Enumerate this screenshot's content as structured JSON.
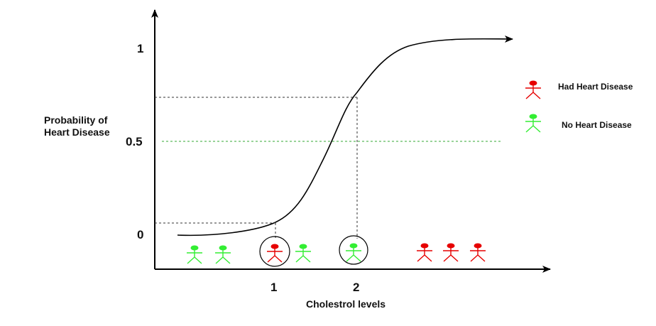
{
  "axes": {
    "y_label_line1": "Probability of",
    "y_label_line2": "Heart Disease",
    "x_label": "Cholestrol levels",
    "y_ticks": [
      "1",
      "0.5",
      "0"
    ],
    "x_ticks": [
      "1",
      "2"
    ]
  },
  "legend": {
    "had": "Had Heart Disease",
    "no": "No Heart Disease"
  },
  "colors": {
    "had": "#e60000",
    "no": "#33ee33",
    "axis": "#000000",
    "threshold": "#33aa33",
    "guide": "#333333"
  },
  "chart_data": {
    "type": "scatter",
    "title": "",
    "xlabel": "Cholestrol levels",
    "ylabel": "Probability of Heart Disease",
    "x_ticks": [
      1,
      2
    ],
    "y_ticks": [
      0,
      0.5,
      1
    ],
    "threshold": 0.5,
    "curve": "sigmoid",
    "series": [
      {
        "name": "Had Heart Disease",
        "color": "#e60000",
        "count": 4,
        "highlighted": 1
      },
      {
        "name": "No Heart Disease",
        "color": "#33ee33",
        "count": 4,
        "highlighted": 1
      }
    ]
  }
}
